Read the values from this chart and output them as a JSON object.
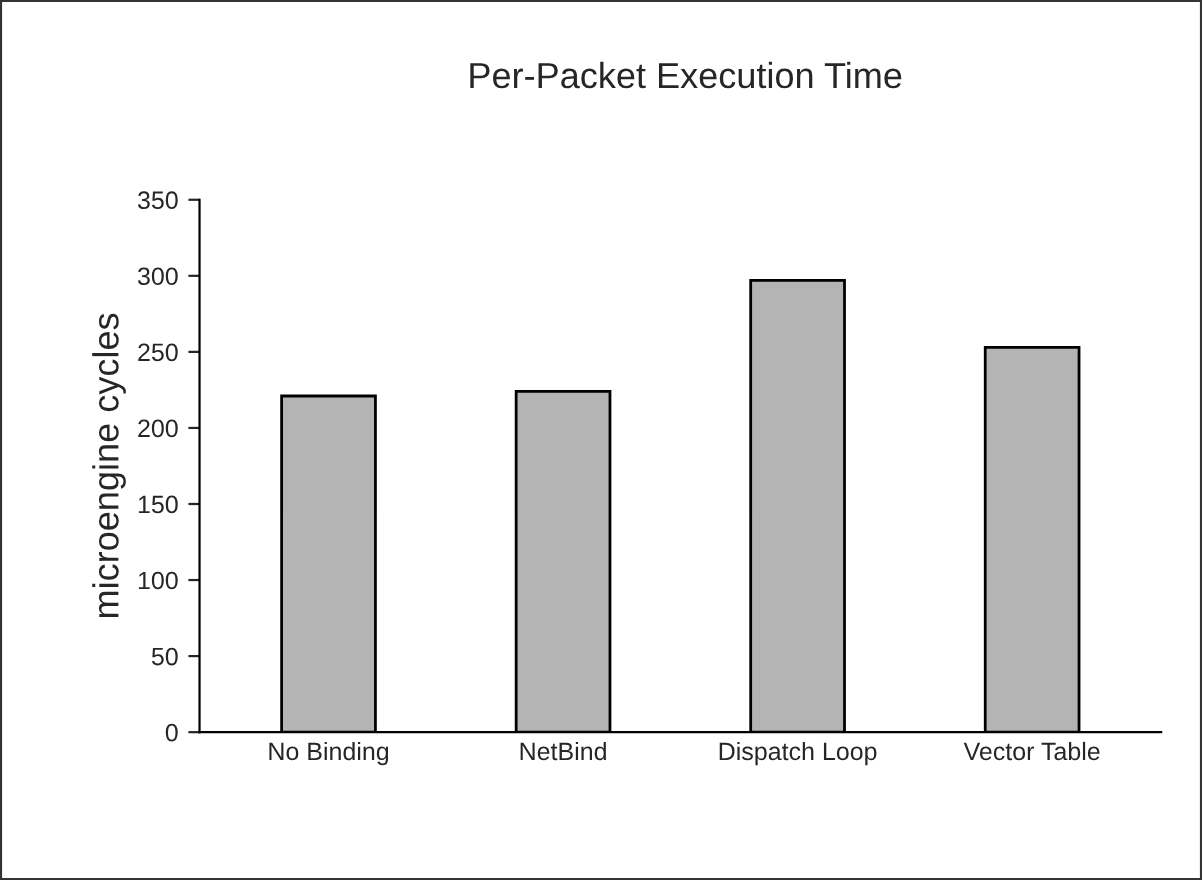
{
  "chart_data": {
    "type": "bar",
    "title": "Per-Packet Execution Time",
    "ylabel": "microengine cycles",
    "categories": [
      "No Binding",
      "NetBind",
      "Dispatch Loop",
      "Vector Table"
    ],
    "values": [
      221,
      224,
      297,
      253
    ],
    "color": "#b4b4b4",
    "ylim": [
      0,
      350
    ],
    "yticks": [
      0,
      50,
      100,
      150,
      200,
      250,
      300,
      350
    ],
    "grid": false
  }
}
